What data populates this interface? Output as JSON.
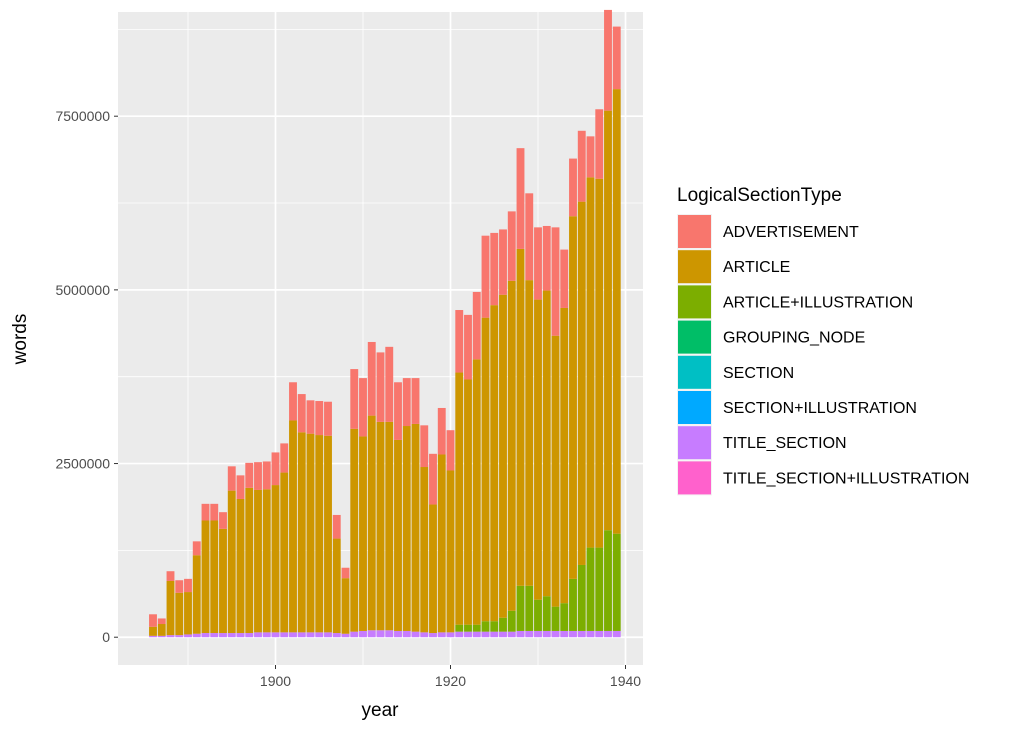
{
  "chart_data": {
    "type": "bar",
    "stacked": true,
    "xlabel": "year",
    "ylabel": "words",
    "xlim": [
      1882,
      1942
    ],
    "ylim": [
      -400000,
      9000000
    ],
    "x_ticks": [
      1900,
      1920,
      1940
    ],
    "y_ticks": [
      0,
      2500000,
      5000000,
      7500000
    ],
    "y_tick_labels": [
      "0",
      "2500000",
      "5000000",
      "7500000"
    ],
    "grid": true,
    "legend": {
      "title": "LogicalSectionType",
      "position": "right"
    },
    "colors": {
      "ADVERTISEMENT": "#F8766D",
      "ARTICLE": "#CD9600",
      "ARTICLE+ILLUSTRATION": "#7CAE00",
      "GROUPING_NODE": "#00BE67",
      "SECTION": "#00BFC4",
      "SECTION+ILLUSTRATION": "#00A9FF",
      "TITLE_SECTION": "#C77CFF",
      "TITLE_SECTION+ILLUSTRATION": "#FF61CC"
    },
    "x": [
      1886,
      1887,
      1888,
      1889,
      1890,
      1891,
      1892,
      1893,
      1894,
      1895,
      1896,
      1897,
      1898,
      1899,
      1900,
      1901,
      1902,
      1903,
      1904,
      1905,
      1906,
      1907,
      1908,
      1909,
      1910,
      1911,
      1912,
      1913,
      1914,
      1915,
      1916,
      1917,
      1918,
      1919,
      1920,
      1921,
      1922,
      1923,
      1924,
      1925,
      1926,
      1927,
      1928,
      1929,
      1930,
      1931,
      1932,
      1933,
      1934,
      1935,
      1936,
      1937,
      1938,
      1939
    ],
    "series": [
      {
        "name": "TITLE_SECTION",
        "values": [
          20000,
          20000,
          30000,
          30000,
          40000,
          50000,
          60000,
          60000,
          60000,
          60000,
          60000,
          60000,
          70000,
          70000,
          70000,
          70000,
          70000,
          70000,
          70000,
          70000,
          70000,
          60000,
          50000,
          80000,
          90000,
          100000,
          100000,
          100000,
          90000,
          90000,
          80000,
          70000,
          60000,
          70000,
          70000,
          80000,
          80000,
          80000,
          80000,
          80000,
          80000,
          80000,
          90000,
          90000,
          90000,
          90000,
          90000,
          90000,
          90000,
          90000,
          90000,
          90000,
          90000,
          90000
        ]
      },
      {
        "name": "ARTICLE+ILLUSTRATION",
        "values": [
          0,
          0,
          0,
          0,
          0,
          0,
          0,
          0,
          0,
          0,
          0,
          0,
          0,
          0,
          0,
          0,
          0,
          0,
          0,
          0,
          0,
          0,
          0,
          0,
          0,
          0,
          0,
          0,
          0,
          0,
          0,
          0,
          0,
          0,
          0,
          100000,
          100000,
          100000,
          150000,
          150000,
          200000,
          300000,
          650000,
          650000,
          450000,
          500000,
          350000,
          400000,
          750000,
          950000,
          1200000,
          1200000,
          1450000,
          1400000
        ]
      },
      {
        "name": "ARTICLE",
        "values": [
          130000,
          170000,
          780000,
          610000,
          610000,
          1130000,
          1620000,
          1620000,
          1500000,
          2050000,
          1930000,
          2090000,
          2050000,
          2060000,
          2120000,
          2300000,
          3050000,
          2880000,
          2860000,
          2840000,
          2830000,
          1360000,
          800000,
          2920000,
          2800000,
          3090000,
          3000000,
          3000000,
          2750000,
          2950000,
          2990000,
          2380000,
          1850000,
          2560000,
          2330000,
          3630000,
          3530000,
          3820000,
          4370000,
          4550000,
          4650000,
          4750000,
          4850000,
          4400000,
          4320000,
          4400000,
          3900000,
          4250000,
          5220000,
          5230000,
          5330000,
          5310000,
          6040000,
          6400000
        ]
      },
      {
        "name": "ADVERTISEMENT",
        "values": [
          180000,
          80000,
          140000,
          180000,
          190000,
          200000,
          240000,
          240000,
          240000,
          350000,
          340000,
          360000,
          400000,
          400000,
          470000,
          420000,
          550000,
          550000,
          480000,
          490000,
          490000,
          340000,
          150000,
          860000,
          840000,
          1060000,
          1000000,
          1080000,
          830000,
          690000,
          660000,
          600000,
          730000,
          670000,
          580000,
          900000,
          930000,
          970000,
          1180000,
          1040000,
          940000,
          1000000,
          1450000,
          1250000,
          1040000,
          930000,
          1560000,
          840000,
          830000,
          1020000,
          590000,
          1000000,
          1450000,
          900000
        ]
      }
    ]
  }
}
